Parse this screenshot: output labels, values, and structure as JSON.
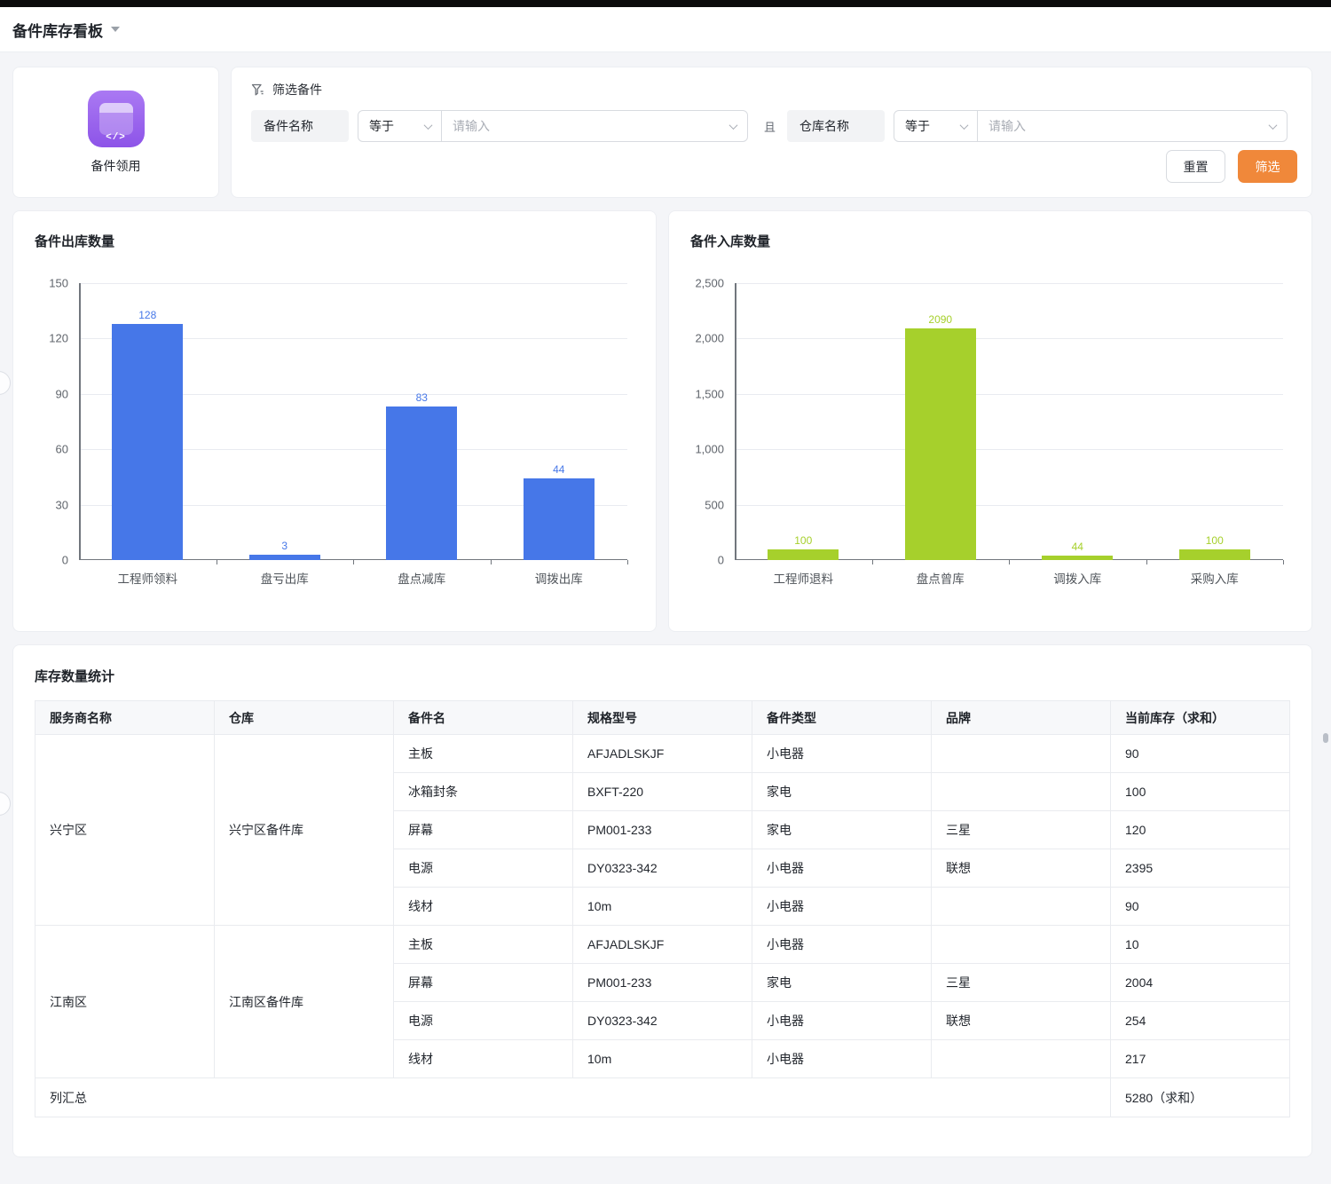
{
  "page": {
    "title": "备件库存看板"
  },
  "app_card": {
    "label": "备件领用",
    "icon": "code-window-icon",
    "icon_glyph": "</>",
    "icon_color": "#8d54e8"
  },
  "filter": {
    "title": "筛选备件",
    "connector": "且",
    "fields": [
      {
        "label": "备件名称",
        "operator": "等于",
        "placeholder": "请输入"
      },
      {
        "label": "仓库名称",
        "operator": "等于",
        "placeholder": "请输入"
      }
    ],
    "reset_label": "重置",
    "submit_label": "筛选",
    "accent_color": "#f0883a"
  },
  "chart_data": [
    {
      "type": "bar",
      "title": "备件出库数量",
      "categories": [
        "工程师领料",
        "盘亏出库",
        "盘点减库",
        "调拨出库"
      ],
      "values": [
        128,
        3,
        83,
        44
      ],
      "xlabel": "",
      "ylabel": "",
      "ylim": [
        0,
        150
      ],
      "yticks": [
        "150",
        "120",
        "90",
        "60",
        "30",
        "0"
      ],
      "grid": true,
      "legend": "none",
      "bar_color": "#4677e8",
      "label_color": "#4677e8"
    },
    {
      "type": "bar",
      "title": "备件入库数量",
      "categories": [
        "工程师退料",
        "盘点曾库",
        "调拨入库",
        "采购入库"
      ],
      "values": [
        100,
        2090,
        44,
        100
      ],
      "xlabel": "",
      "ylabel": "",
      "ylim": [
        0,
        2500
      ],
      "yticks": [
        "2,500",
        "2,000",
        "1,500",
        "1,000",
        "500",
        "0"
      ],
      "grid": true,
      "legend": "none",
      "bar_color": "#a6d02c",
      "label_color": "#a6d02c"
    }
  ],
  "table": {
    "title": "库存数量统计",
    "columns": [
      "服务商名称",
      "仓库",
      "备件名",
      "规格型号",
      "备件类型",
      "品牌",
      "当前库存（求和）"
    ],
    "groups": [
      {
        "provider": "兴宁区",
        "warehouse": "兴宁区备件库",
        "rows": [
          [
            "主板",
            "AFJADLSKJF",
            "小电器",
            "",
            "90"
          ],
          [
            "冰箱封条",
            "BXFT-220",
            "家电",
            "",
            "100"
          ],
          [
            "屏幕",
            "PM001-233",
            "家电",
            "三星",
            "120"
          ],
          [
            "电源",
            "DY0323-342",
            "小电器",
            "联想",
            "2395"
          ],
          [
            "线材",
            "10m",
            "小电器",
            "",
            "90"
          ]
        ]
      },
      {
        "provider": "江南区",
        "warehouse": "江南区备件库",
        "rows": [
          [
            "主板",
            "AFJADLSKJF",
            "小电器",
            "",
            "10"
          ],
          [
            "屏幕",
            "PM001-233",
            "家电",
            "三星",
            "2004"
          ],
          [
            "电源",
            "DY0323-342",
            "小电器",
            "联想",
            "254"
          ],
          [
            "线材",
            "10m",
            "小电器",
            "",
            "217"
          ]
        ]
      }
    ],
    "summary": {
      "label": "列汇总",
      "value": "5280（求和）"
    }
  }
}
